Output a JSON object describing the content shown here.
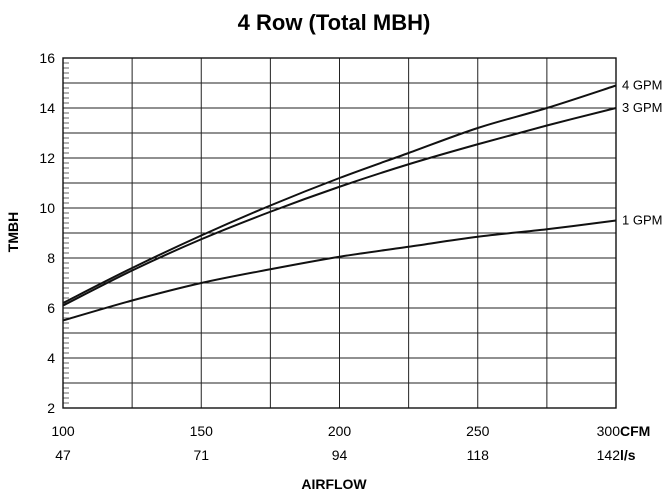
{
  "chart_data": {
    "type": "line",
    "title": "4 Row (Total MBH)",
    "xlabel": "AIRFLOW",
    "ylabel": "TMBH",
    "xlim": [
      100,
      300
    ],
    "ylim": [
      2,
      16
    ],
    "x_ticks": [
      100,
      150,
      200,
      250,
      300
    ],
    "x_ticks_secondary": [
      "47",
      "71",
      "94",
      "118",
      "142"
    ],
    "x_unit_primary": "CFM",
    "x_unit_secondary": "l/s",
    "y_ticks": [
      2,
      4,
      6,
      8,
      10,
      12,
      14,
      16
    ],
    "grid": true,
    "series": [
      {
        "name": "4 GPM",
        "x": [
          100,
          125,
          150,
          175,
          200,
          225,
          250,
          275,
          300
        ],
        "values": [
          6.2,
          7.6,
          8.9,
          10.1,
          11.2,
          12.2,
          13.2,
          14.0,
          14.9
        ]
      },
      {
        "name": "3 GPM",
        "x": [
          100,
          125,
          150,
          175,
          200,
          225,
          250,
          275,
          300
        ],
        "values": [
          6.1,
          7.5,
          8.75,
          9.85,
          10.85,
          11.75,
          12.55,
          13.3,
          14.0
        ]
      },
      {
        "name": "1 GPM",
        "x": [
          100,
          125,
          150,
          175,
          200,
          225,
          250,
          275,
          300
        ],
        "values": [
          5.5,
          6.3,
          7.0,
          7.55,
          8.05,
          8.45,
          8.85,
          9.15,
          9.5
        ]
      }
    ]
  }
}
